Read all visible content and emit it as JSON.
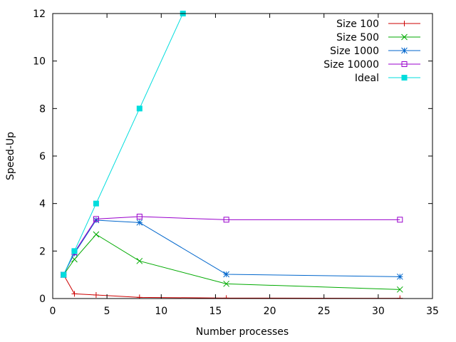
{
  "chart_data": {
    "type": "line",
    "title": "",
    "xlabel": "Number processes",
    "ylabel": "Speed-Up",
    "xlim": [
      0,
      35
    ],
    "ylim": [
      0,
      12
    ],
    "xticks": [
      0,
      5,
      10,
      15,
      20,
      25,
      30,
      35
    ],
    "yticks": [
      0,
      2,
      4,
      6,
      8,
      10,
      12
    ],
    "grid": false,
    "legend_position": "top-right",
    "series": [
      {
        "name": "Size 100",
        "color": "#cc0000",
        "marker": "plus",
        "x": [
          1,
          2,
          4,
          8,
          16,
          32
        ],
        "values": [
          1.0,
          0.2,
          0.15,
          0.05,
          0.02,
          0.01
        ]
      },
      {
        "name": "Size 500",
        "color": "#00aa00",
        "marker": "cross",
        "x": [
          1,
          2,
          4,
          8,
          16,
          32
        ],
        "values": [
          1.0,
          1.65,
          2.7,
          1.58,
          0.62,
          0.38
        ]
      },
      {
        "name": "Size 1000",
        "color": "#0066cc",
        "marker": "star",
        "x": [
          1,
          2,
          4,
          8,
          16,
          32
        ],
        "values": [
          1.0,
          1.9,
          3.3,
          3.2,
          1.02,
          0.92
        ]
      },
      {
        "name": "Size 10000",
        "color": "#9900cc",
        "marker": "open-square",
        "x": [
          1,
          2,
          4,
          8,
          16,
          32
        ],
        "values": [
          1.0,
          1.95,
          3.35,
          3.45,
          3.32,
          3.32
        ]
      },
      {
        "name": "Ideal",
        "color": "#00dddd",
        "marker": "filled-square",
        "x": [
          1,
          2,
          4,
          8,
          12
        ],
        "values": [
          1,
          2,
          4,
          8,
          12
        ]
      }
    ]
  }
}
